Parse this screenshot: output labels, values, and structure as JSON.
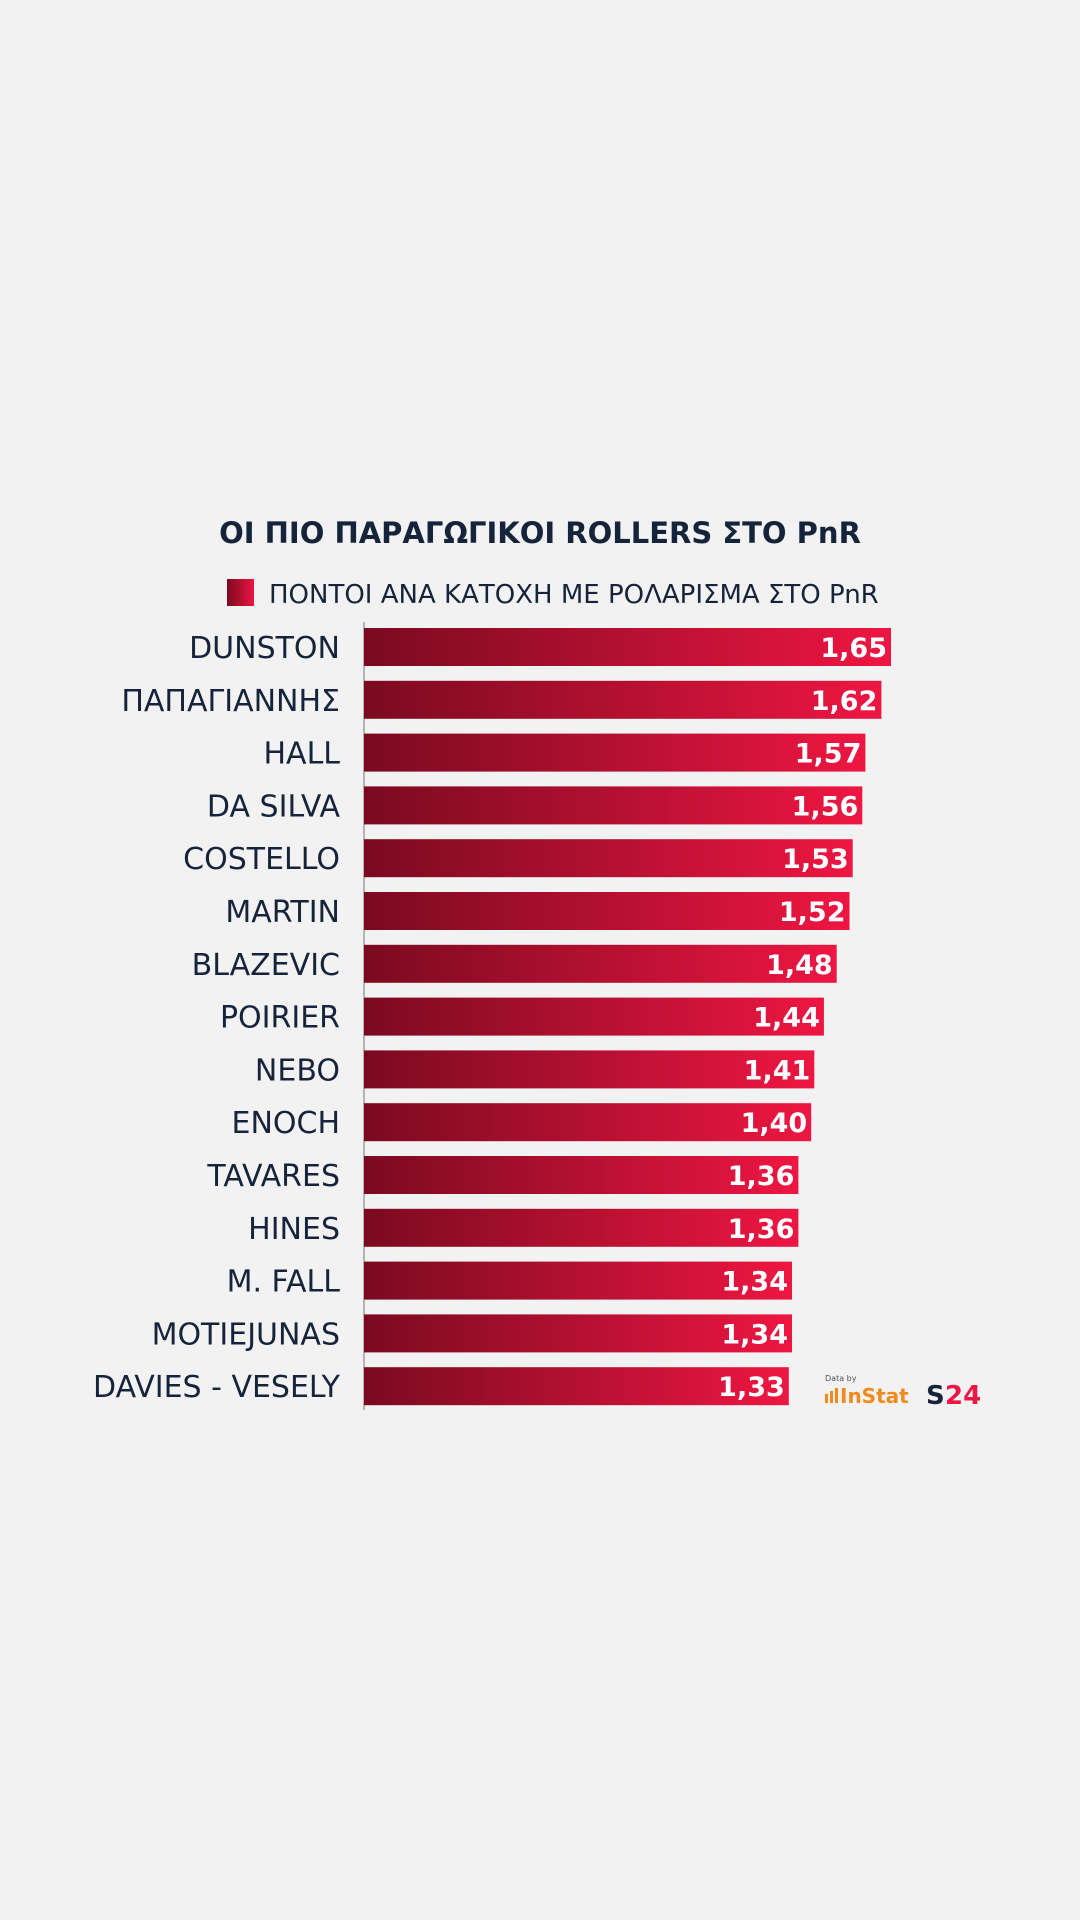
{
  "chart_data": {
    "type": "bar",
    "orientation": "horizontal",
    "title": "ΟΙ ΠΙΟ ΠΑΡΑΓΩΓΙΚΟΙ ROLLERS ΣΤΟ PnR",
    "legend": "ΠΟΝΤΟΙ ΑΝΑ ΚΑΤΟΧΗ ΜΕ ΡΟΛΑΡΙΣΜΑ ΣΤΟ PnR",
    "categories": [
      "DUNSTON",
      "ΠΑΠΑΓΙΑΝΝΗΣ",
      "HALL",
      "DA SILVA",
      "COSTELLO",
      "MARTIN",
      "BLAZEVIC",
      "POIRIER",
      "NEBO",
      "ENOCH",
      "TAVARES",
      "HINES",
      "M. FALL",
      "MOTIEJUNAS",
      "DAVIES - VESELY"
    ],
    "values": [
      1.65,
      1.62,
      1.57,
      1.56,
      1.53,
      1.52,
      1.48,
      1.44,
      1.41,
      1.4,
      1.36,
      1.36,
      1.34,
      1.34,
      1.33
    ],
    "value_labels": [
      "1,65",
      "1,62",
      "1,57",
      "1,56",
      "1,53",
      "1,52",
      "1,48",
      "1,44",
      "1,41",
      "1,40",
      "1,36",
      "1,36",
      "1,34",
      "1,34",
      "1,33"
    ],
    "xlim": [
      0,
      1.65
    ],
    "grid": false,
    "colors": {
      "bar_start": "#7a0a20",
      "bar_end": "#ee1642",
      "text": "#15243a",
      "value_text": "#ffffff",
      "axis": "#8a8a8a"
    }
  },
  "credits": {
    "data_by": "Data by",
    "instat": "InStat",
    "s24": "S24",
    "instat_color": "#f08a1c",
    "s24_colors": [
      "#15243a",
      "#ee1642"
    ]
  }
}
